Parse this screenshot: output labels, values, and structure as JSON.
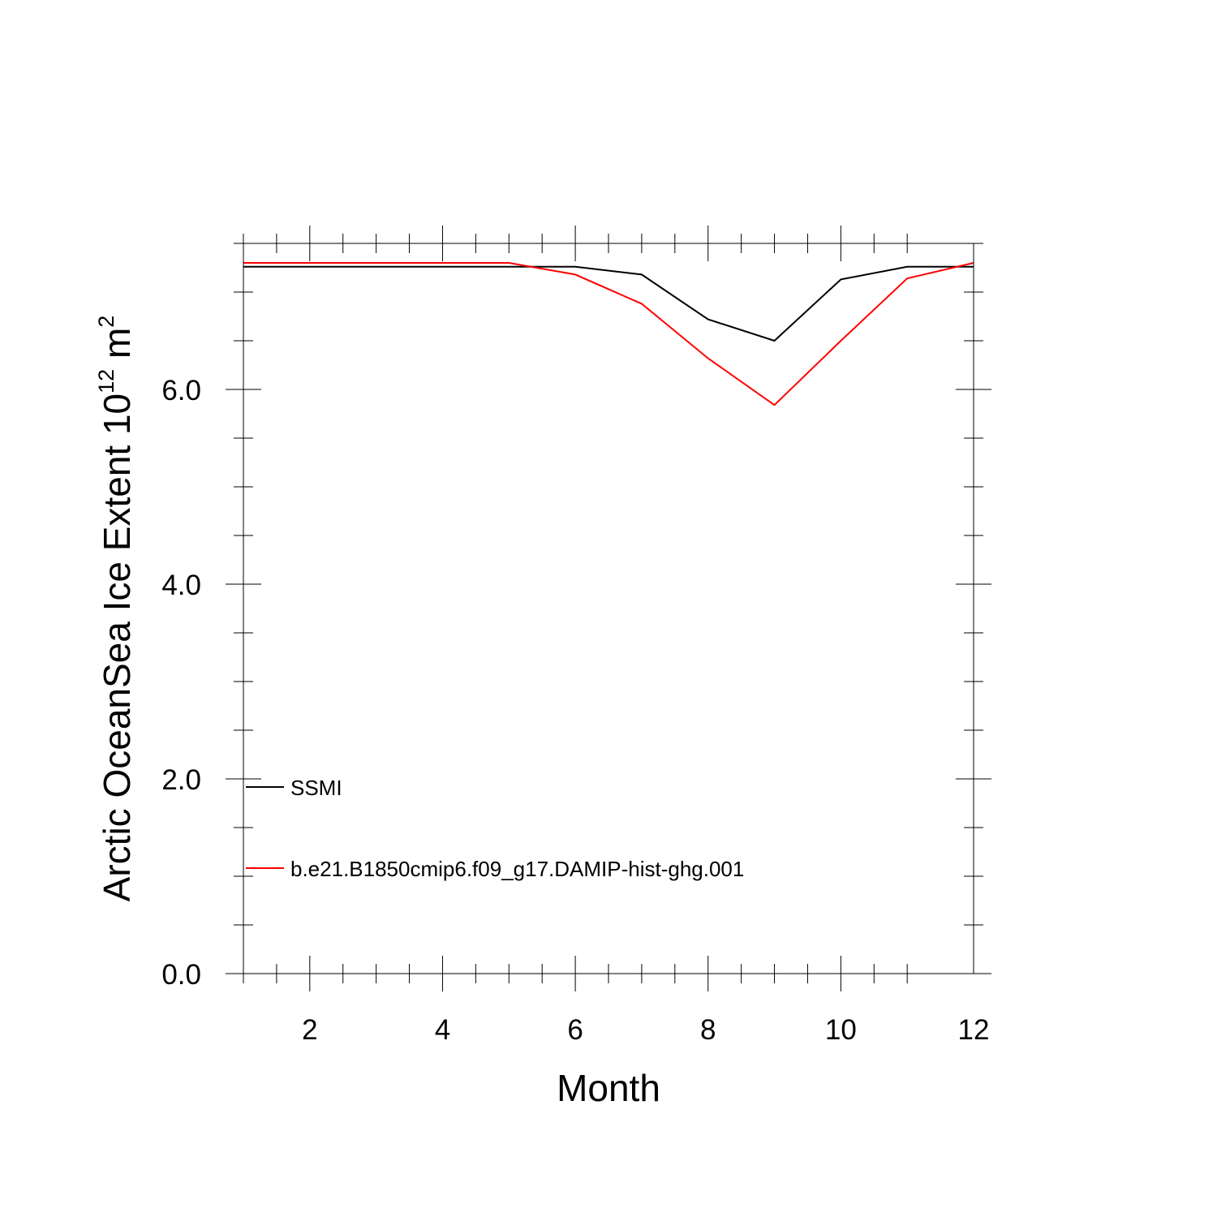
{
  "chart_data": {
    "type": "line",
    "title": "",
    "xlabel": "Month",
    "ylabel": {
      "prefix": "Arctic OceanSea Ice Extent 10",
      "exp1": "12",
      "unit": " m",
      "exp2": "2"
    },
    "xlim": [
      1,
      12
    ],
    "ylim": [
      0,
      7.5
    ],
    "x_ticks": [
      2,
      4,
      6,
      8,
      10,
      12
    ],
    "x_tick_labels": [
      "2",
      "4",
      "6",
      "8",
      "10",
      "12"
    ],
    "y_ticks": [
      0,
      2,
      4,
      6
    ],
    "y_tick_labels": [
      "0.0",
      "2.0",
      "4.0",
      "6.0"
    ],
    "grid": false,
    "legend_position": "lower-left",
    "x": [
      1,
      2,
      3,
      4,
      5,
      6,
      7,
      8,
      9,
      10,
      11,
      12
    ],
    "series": [
      {
        "name": "SSMI",
        "color": "#000000",
        "values": [
          7.26,
          7.26,
          7.26,
          7.26,
          7.26,
          7.26,
          7.18,
          6.72,
          6.5,
          7.13,
          7.26,
          7.26
        ]
      },
      {
        "name": "b.e21.B1850cmip6.f09_g17.DAMIP-hist-ghg.001",
        "color": "#ff0000",
        "values": [
          7.3,
          7.3,
          7.3,
          7.3,
          7.3,
          7.18,
          6.88,
          6.32,
          5.84,
          6.5,
          7.14,
          7.3
        ]
      }
    ]
  }
}
